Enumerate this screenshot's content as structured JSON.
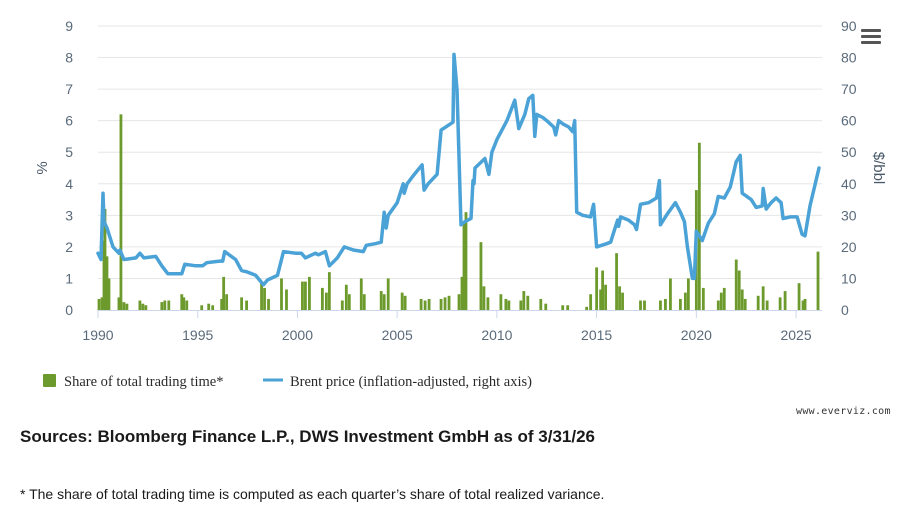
{
  "menu": {
    "icon": "hamburger-menu-icon"
  },
  "credit": "www.everviz.com",
  "sources": "Sources: Bloomberg Finance L.P., DWS Investment GmbH as of 3/31/26",
  "footnote": "* The share of total trading time is computed as each quarter’s share of total realized variance.",
  "colors": {
    "bars": "#6d9a2c",
    "line": "#4aa2d6",
    "grid": "#e6e6e6",
    "axis": "#ccd6eb"
  },
  "chart_data": {
    "type": "bar+line",
    "x_ticks": [
      "1990",
      "1995",
      "2000",
      "2005",
      "2010",
      "2015",
      "2020",
      "2025"
    ],
    "xlim": [
      1990,
      2026.3
    ],
    "left_axis": {
      "label": "%",
      "lim": [
        0,
        9
      ],
      "ticks": [
        "0",
        "1",
        "2",
        "3",
        "4",
        "5",
        "6",
        "7",
        "8",
        "9"
      ]
    },
    "right_axis": {
      "label": "$/bbl",
      "lim": [
        0,
        90
      ],
      "ticks": [
        "0",
        "10",
        "20",
        "30",
        "40",
        "50",
        "60",
        "70",
        "80",
        "90"
      ]
    },
    "legend_position": "bottom-left",
    "series": [
      {
        "name": "Share of total trading time*",
        "type": "bar",
        "axis": "left",
        "points": [
          [
            1990.05,
            0.35
          ],
          [
            1990.2,
            0.4
          ],
          [
            1990.3,
            2.2
          ],
          [
            1990.35,
            3.2
          ],
          [
            1990.45,
            1.7
          ],
          [
            1990.55,
            1.0
          ],
          [
            1991.05,
            0.4
          ],
          [
            1991.15,
            6.2
          ],
          [
            1991.3,
            0.25
          ],
          [
            1991.45,
            0.2
          ],
          [
            1992.1,
            0.3
          ],
          [
            1992.25,
            0.2
          ],
          [
            1992.4,
            0.15
          ],
          [
            1993.2,
            0.25
          ],
          [
            1993.35,
            0.3
          ],
          [
            1993.55,
            0.3
          ],
          [
            1994.2,
            0.5
          ],
          [
            1994.3,
            0.4
          ],
          [
            1994.45,
            0.3
          ],
          [
            1995.2,
            0.15
          ],
          [
            1995.55,
            0.2
          ],
          [
            1995.75,
            0.15
          ],
          [
            1996.2,
            0.35
          ],
          [
            1996.3,
            1.05
          ],
          [
            1996.45,
            0.5
          ],
          [
            1997.2,
            0.4
          ],
          [
            1997.45,
            0.3
          ],
          [
            1998.2,
            0.9
          ],
          [
            1998.35,
            0.7
          ],
          [
            1998.55,
            0.35
          ],
          [
            1999.2,
            1.0
          ],
          [
            1999.45,
            0.65
          ],
          [
            2000.25,
            0.9
          ],
          [
            2000.4,
            0.9
          ],
          [
            2000.6,
            1.05
          ],
          [
            2001.25,
            0.7
          ],
          [
            2001.45,
            0.55
          ],
          [
            2001.6,
            1.2
          ],
          [
            2002.25,
            0.3
          ],
          [
            2002.45,
            0.8
          ],
          [
            2002.6,
            0.5
          ],
          [
            2003.2,
            1.0
          ],
          [
            2003.35,
            0.5
          ],
          [
            2004.2,
            0.6
          ],
          [
            2004.35,
            0.5
          ],
          [
            2004.55,
            1.0
          ],
          [
            2005.25,
            0.55
          ],
          [
            2005.4,
            0.45
          ],
          [
            2006.2,
            0.35
          ],
          [
            2006.4,
            0.3
          ],
          [
            2006.6,
            0.35
          ],
          [
            2007.2,
            0.35
          ],
          [
            2007.4,
            0.4
          ],
          [
            2007.6,
            0.45
          ],
          [
            2008.1,
            0.5
          ],
          [
            2008.25,
            1.05
          ],
          [
            2008.35,
            2.75
          ],
          [
            2008.45,
            3.1
          ],
          [
            2009.2,
            2.15
          ],
          [
            2009.35,
            0.75
          ],
          [
            2009.55,
            0.4
          ],
          [
            2010.2,
            0.5
          ],
          [
            2010.45,
            0.35
          ],
          [
            2010.6,
            0.3
          ],
          [
            2011.2,
            0.3
          ],
          [
            2011.35,
            0.6
          ],
          [
            2011.55,
            0.45
          ],
          [
            2012.2,
            0.35
          ],
          [
            2012.45,
            0.2
          ],
          [
            2013.3,
            0.15
          ],
          [
            2013.55,
            0.15
          ],
          [
            2014.5,
            0.1
          ],
          [
            2014.7,
            0.5
          ],
          [
            2015.0,
            1.35
          ],
          [
            2015.2,
            0.65
          ],
          [
            2015.3,
            1.25
          ],
          [
            2015.45,
            0.8
          ],
          [
            2016.0,
            1.8
          ],
          [
            2016.15,
            0.75
          ],
          [
            2016.3,
            0.55
          ],
          [
            2017.2,
            0.3
          ],
          [
            2017.4,
            0.3
          ],
          [
            2018.2,
            0.3
          ],
          [
            2018.45,
            0.35
          ],
          [
            2018.7,
            1.0
          ],
          [
            2019.2,
            0.35
          ],
          [
            2019.45,
            0.55
          ],
          [
            2019.6,
            1.0
          ],
          [
            2020.0,
            3.8
          ],
          [
            2020.15,
            5.3
          ],
          [
            2020.35,
            0.7
          ],
          [
            2021.1,
            0.3
          ],
          [
            2021.25,
            0.55
          ],
          [
            2021.4,
            0.7
          ],
          [
            2022.0,
            1.6
          ],
          [
            2022.15,
            1.25
          ],
          [
            2022.3,
            0.65
          ],
          [
            2022.45,
            0.35
          ],
          [
            2023.1,
            0.45
          ],
          [
            2023.35,
            0.75
          ],
          [
            2023.55,
            0.3
          ],
          [
            2024.2,
            0.4
          ],
          [
            2024.45,
            0.6
          ],
          [
            2025.15,
            0.85
          ],
          [
            2025.35,
            0.3
          ],
          [
            2025.45,
            0.35
          ],
          [
            2026.1,
            1.85
          ]
        ]
      },
      {
        "name": "Brent price (inflation-adjusted, right axis)",
        "type": "line",
        "axis": "right",
        "points": [
          [
            1990.0,
            18
          ],
          [
            1990.15,
            16
          ],
          [
            1990.25,
            37
          ],
          [
            1990.3,
            28
          ],
          [
            1990.45,
            26
          ],
          [
            1990.75,
            20
          ],
          [
            1991.05,
            18
          ],
          [
            1991.1,
            19
          ],
          [
            1991.3,
            16
          ],
          [
            1991.9,
            16.5
          ],
          [
            1992.1,
            18
          ],
          [
            1992.3,
            16.5
          ],
          [
            1992.9,
            17
          ],
          [
            1993.2,
            14
          ],
          [
            1993.5,
            11.5
          ],
          [
            1994.2,
            11.5
          ],
          [
            1994.35,
            14.5
          ],
          [
            1994.9,
            14
          ],
          [
            1995.25,
            14
          ],
          [
            1995.45,
            15
          ],
          [
            1996.1,
            15.5
          ],
          [
            1996.25,
            15.5
          ],
          [
            1996.35,
            18.5
          ],
          [
            1996.9,
            16
          ],
          [
            1997.2,
            12.5
          ],
          [
            1997.5,
            12
          ],
          [
            1997.9,
            11
          ],
          [
            1998.3,
            8
          ],
          [
            1998.5,
            9.5
          ],
          [
            1999.0,
            11
          ],
          [
            1999.3,
            18.5
          ],
          [
            1999.9,
            18
          ],
          [
            2000.2,
            18
          ],
          [
            2000.4,
            16.5
          ],
          [
            2000.9,
            18
          ],
          [
            2001.05,
            17.5
          ],
          [
            2001.4,
            18.5
          ],
          [
            2001.6,
            14
          ],
          [
            2002.0,
            16.5
          ],
          [
            2002.35,
            20
          ],
          [
            2002.8,
            19
          ],
          [
            2003.3,
            18.5
          ],
          [
            2003.45,
            20.5
          ],
          [
            2003.9,
            21
          ],
          [
            2004.2,
            21.5
          ],
          [
            2004.35,
            31
          ],
          [
            2004.45,
            26
          ],
          [
            2004.55,
            30
          ],
          [
            2005.0,
            34
          ],
          [
            2005.3,
            40
          ],
          [
            2005.35,
            37
          ],
          [
            2005.5,
            40
          ],
          [
            2005.8,
            42.5
          ],
          [
            2006.25,
            46
          ],
          [
            2006.35,
            38
          ],
          [
            2006.55,
            40
          ],
          [
            2007.0,
            43
          ],
          [
            2007.2,
            57
          ],
          [
            2007.8,
            59.5
          ],
          [
            2007.85,
            81
          ],
          [
            2008.0,
            70
          ],
          [
            2008.2,
            27
          ],
          [
            2008.4,
            28
          ],
          [
            2008.7,
            29
          ],
          [
            2008.8,
            41
          ],
          [
            2008.85,
            40
          ],
          [
            2008.9,
            45
          ],
          [
            2009.4,
            48
          ],
          [
            2009.6,
            43
          ],
          [
            2009.75,
            50
          ],
          [
            2010.0,
            54
          ],
          [
            2010.5,
            60
          ],
          [
            2010.9,
            66.5
          ],
          [
            2011.1,
            57.5
          ],
          [
            2011.4,
            62
          ],
          [
            2011.6,
            67
          ],
          [
            2011.8,
            68
          ],
          [
            2011.9,
            55
          ],
          [
            2012.0,
            62
          ],
          [
            2012.3,
            61
          ],
          [
            2012.5,
            60
          ],
          [
            2012.85,
            58
          ],
          [
            2012.95,
            55.5
          ],
          [
            2013.1,
            60
          ],
          [
            2013.3,
            59
          ],
          [
            2013.6,
            58
          ],
          [
            2013.8,
            56.5
          ],
          [
            2013.9,
            60
          ],
          [
            2014.0,
            31
          ],
          [
            2014.3,
            30
          ],
          [
            2014.7,
            29.5
          ],
          [
            2014.85,
            33.5
          ],
          [
            2015.0,
            20
          ],
          [
            2015.5,
            21
          ],
          [
            2015.7,
            21.5
          ],
          [
            2016.05,
            28.5
          ],
          [
            2016.1,
            26.5
          ],
          [
            2016.2,
            29.5
          ],
          [
            2016.6,
            28.5
          ],
          [
            2016.9,
            27
          ],
          [
            2017.0,
            25.5
          ],
          [
            2017.2,
            33.5
          ],
          [
            2017.6,
            34
          ],
          [
            2018.0,
            35.5
          ],
          [
            2018.15,
            41
          ],
          [
            2018.2,
            27
          ],
          [
            2018.55,
            30.5
          ],
          [
            2018.95,
            34
          ],
          [
            2019.2,
            31
          ],
          [
            2019.4,
            28
          ],
          [
            2019.55,
            20
          ],
          [
            2019.8,
            10
          ],
          [
            2019.9,
            10
          ],
          [
            2020.0,
            25
          ],
          [
            2020.3,
            22
          ],
          [
            2020.6,
            27.5
          ],
          [
            2020.9,
            30.5
          ],
          [
            2021.1,
            36
          ],
          [
            2021.4,
            35.5
          ],
          [
            2021.7,
            39
          ],
          [
            2022.0,
            47
          ],
          [
            2022.2,
            49
          ],
          [
            2022.3,
            37
          ],
          [
            2022.75,
            35
          ],
          [
            2023.0,
            32.5
          ],
          [
            2023.3,
            33
          ],
          [
            2023.35,
            38.5
          ],
          [
            2023.5,
            32
          ],
          [
            2023.75,
            34
          ],
          [
            2024.0,
            35.5
          ],
          [
            2024.25,
            34
          ],
          [
            2024.35,
            29
          ],
          [
            2024.7,
            29.5
          ],
          [
            2025.05,
            29.5
          ],
          [
            2025.3,
            24
          ],
          [
            2025.45,
            23.5
          ],
          [
            2025.7,
            33
          ],
          [
            2026.15,
            45
          ]
        ]
      }
    ]
  }
}
